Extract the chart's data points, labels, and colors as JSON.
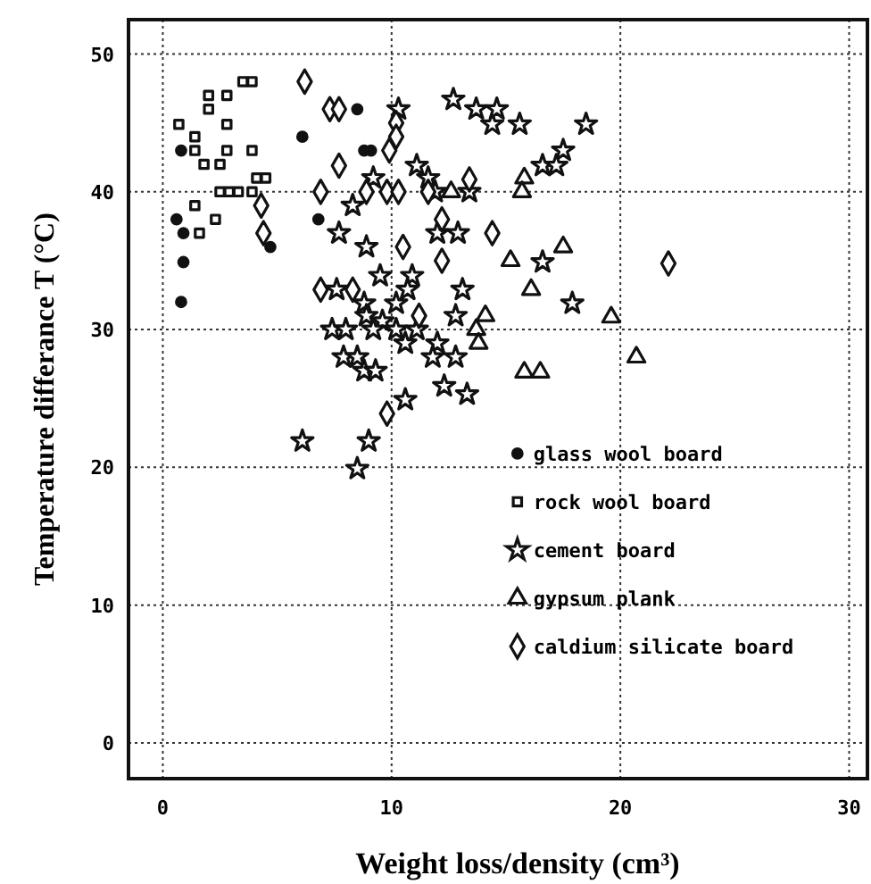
{
  "chart_data": {
    "type": "scatter",
    "xlabel": "Weight loss/density (cm³)",
    "ylabel": "Temperature differance T (°C)",
    "xlim": [
      -1.5,
      30.8
    ],
    "ylim": [
      -2.6,
      52.5
    ],
    "xticks": [
      0,
      10,
      20,
      30
    ],
    "yticks": [
      0,
      10,
      20,
      30,
      40,
      50
    ],
    "grid": true,
    "legend": "bottom right",
    "line_style": "dotted",
    "series": [
      {
        "name": "glass wool board",
        "color": "#111111",
        "marker": "circle",
        "x": [
          0.8,
          0.6,
          0.9,
          0.9,
          0.8,
          4.7,
          6.1,
          8.5,
          6.8,
          8.8,
          9.1
        ],
        "values": [
          43,
          38,
          37,
          34.9,
          32,
          36,
          44,
          46,
          38,
          43,
          43
        ]
      },
      {
        "name": "rock wool board",
        "color": "#111111",
        "marker": "square",
        "x": [
          0.7,
          1.4,
          2.0,
          2.0,
          2.8,
          2.8,
          3.5,
          3.9,
          1.4,
          1.8,
          2.5,
          2.8,
          3.9,
          4.1,
          4.5,
          2.5,
          2.9,
          3.3,
          3.9,
          1.4,
          2.3,
          1.6
        ],
        "values": [
          44.9,
          44,
          47,
          46,
          47,
          44.9,
          48,
          48,
          43,
          42,
          42,
          43,
          43,
          41,
          41,
          40,
          40,
          40,
          40,
          39,
          38,
          37
        ]
      },
      {
        "name": "cement board",
        "color": "#111111",
        "marker": "star",
        "x": [
          10.3,
          12.7,
          13.7,
          14.4,
          11.1,
          11.6,
          9.2,
          11.9,
          13.4,
          8.3,
          7.7,
          12.0,
          12.9,
          8.9,
          9.5,
          10.9,
          10.7,
          13.1,
          7.6,
          8.8,
          10.2,
          8.9,
          9.6,
          12.8,
          7.4,
          8.0,
          9.2,
          10.2,
          11.1,
          10.6,
          12.0,
          7.9,
          8.5,
          11.8,
          12.8,
          8.8,
          9.3,
          12.3,
          13.3,
          10.6,
          6.1,
          8.5,
          9.0,
          14.6,
          15.6,
          18.5,
          17.5,
          16.6,
          17.2,
          16.6,
          17.9
        ],
        "values": [
          46,
          46.7,
          46,
          44.9,
          41.9,
          41,
          41,
          40,
          40,
          39,
          37,
          37,
          37,
          36,
          33.9,
          33.9,
          32.9,
          32.9,
          32.9,
          31.9,
          31.9,
          31,
          30.6,
          31,
          30,
          30,
          30,
          30,
          30,
          29,
          29,
          28,
          28,
          28,
          28,
          27,
          27,
          25.9,
          25.3,
          24.9,
          21.9,
          19.9,
          21.9,
          46,
          44.9,
          44.9,
          43,
          41.9,
          41.9,
          34.9,
          31.9
        ]
      },
      {
        "name": "gypsum plank",
        "color": "#111111",
        "marker": "triangle",
        "x": [
          12.6,
          14.1,
          13.7,
          13.8,
          15.8,
          15.7,
          17.5,
          15.2,
          16.1,
          19.6,
          20.7,
          15.8,
          16.5
        ],
        "values": [
          40,
          31,
          30,
          29,
          41,
          40,
          36,
          35,
          32.9,
          30.9,
          28,
          26.9,
          26.9
        ]
      },
      {
        "name": "caldium silicate board",
        "color": "#111111",
        "marker": "diamond",
        "x": [
          6.2,
          7.3,
          7.7,
          10.2,
          10.2,
          9.9,
          7.7,
          13.4,
          6.9,
          8.9,
          9.8,
          10.3,
          11.6,
          4.3,
          4.4,
          12.2,
          14.4,
          10.5,
          12.2,
          6.9,
          8.3,
          11.2,
          9.8,
          22.1
        ],
        "values": [
          48,
          46,
          46,
          45,
          44,
          43,
          41.9,
          40.9,
          40,
          40,
          40,
          40,
          40,
          39,
          37,
          38,
          37,
          36,
          35,
          32.9,
          32.9,
          31,
          23.9,
          34.8
        ]
      }
    ]
  }
}
